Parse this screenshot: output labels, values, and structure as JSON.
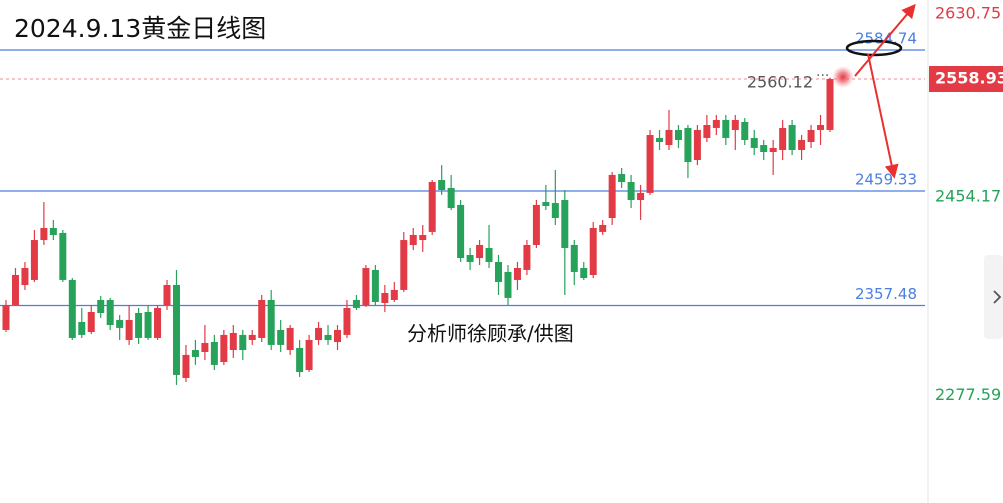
{
  "chart_data": {
    "type": "candlestick",
    "title": "2024.9.13黄金日线图",
    "annotation": "分析师徐顾承/供图",
    "up_color": "#e23b45",
    "down_color": "#26a25a",
    "level_color": "#4a7fe0",
    "ylim": [
      2181.8,
      2629.2
    ],
    "yticks": [
      2630.75,
      2454.17,
      2277.59
    ],
    "levels": [
      2584.74,
      2459.33,
      2357.48
    ],
    "open": [
      2335.7,
      2357.9,
      2375.7,
      2380.2,
      2415.7,
      2426.4,
      2422.0,
      2380.2,
      2342.8,
      2333.9,
      2362.4,
      2362.4,
      2344.6,
      2326.8,
      2350.8,
      2351.7,
      2328.6,
      2357.9,
      2375.7,
      2293.0,
      2317.9,
      2316.1,
      2325.0,
      2307.2,
      2317.9,
      2331.3,
      2326.8,
      2328.6,
      2362.4,
      2335.7,
      2317.9,
      2319.7,
      2300.1,
      2326.8,
      2331.3,
      2325.0,
      2331.3,
      2362.4,
      2357.9,
      2389.1,
      2359.7,
      2362.4,
      2371.3,
      2411.3,
      2415.7,
      2422.9,
      2469.1,
      2462.0,
      2446.9,
      2402.4,
      2399.7,
      2408.6,
      2396.2,
      2387.3,
      2380.2,
      2389.1,
      2411.3,
      2449.5,
      2448.6,
      2451.3,
      2411.3,
      2390.8,
      2384.6,
      2422.9,
      2435.3,
      2474.4,
      2467.3,
      2451.3,
      2457.6,
      2506.5,
      2500.2,
      2513.6,
      2515.4,
      2486.9,
      2506.5,
      2515.4,
      2522.5,
      2513.6,
      2520.7,
      2506.5,
      2500.2,
      2494.0,
      2495.8,
      2518.0,
      2495.8,
      2502.9,
      2513.6,
      2513.6
    ],
    "high": [
      2362.4,
      2390.8,
      2396.2,
      2424.6,
      2449.5,
      2433.5,
      2424.6,
      2381.9,
      2355.3,
      2357.9,
      2365.9,
      2364.2,
      2349.0,
      2357.9,
      2355.3,
      2357.9,
      2357.9,
      2380.2,
      2389.1,
      2322.4,
      2326.8,
      2340.1,
      2331.3,
      2335.7,
      2340.1,
      2335.7,
      2335.7,
      2366.8,
      2371.3,
      2344.6,
      2340.1,
      2326.8,
      2331.3,
      2342.8,
      2340.1,
      2340.1,
      2362.4,
      2366.8,
      2393.5,
      2393.5,
      2375.7,
      2378.4,
      2422.9,
      2426.4,
      2429.1,
      2469.1,
      2482.4,
      2473.6,
      2451.3,
      2408.6,
      2415.7,
      2429.1,
      2402.4,
      2393.5,
      2396.2,
      2415.7,
      2451.3,
      2464.7,
      2478.0,
      2460.2,
      2415.7,
      2396.2,
      2431.8,
      2433.5,
      2476.2,
      2479.8,
      2473.6,
      2464.7,
      2513.6,
      2513.6,
      2531.4,
      2518.0,
      2518.0,
      2518.0,
      2526.9,
      2526.9,
      2526.9,
      2526.9,
      2524.2,
      2513.6,
      2504.7,
      2504.7,
      2522.5,
      2522.5,
      2509.1,
      2518.0,
      2526.9,
      2560.12
    ],
    "low": [
      2333.9,
      2357.0,
      2371.3,
      2378.4,
      2411.3,
      2415.7,
      2378.4,
      2326.8,
      2328.6,
      2332.1,
      2346.4,
      2335.7,
      2326.8,
      2322.4,
      2323.2,
      2326.8,
      2326.8,
      2353.5,
      2286.8,
      2289.4,
      2304.6,
      2309.0,
      2300.1,
      2304.6,
      2310.8,
      2309.0,
      2322.4,
      2325.0,
      2317.9,
      2316.1,
      2313.5,
      2293.9,
      2298.3,
      2322.4,
      2322.4,
      2317.9,
      2328.6,
      2353.5,
      2356.2,
      2357.9,
      2351.7,
      2360.6,
      2369.5,
      2406.8,
      2405.1,
      2420.2,
      2455.8,
      2442.4,
      2396.2,
      2389.1,
      2393.5,
      2390.8,
      2366.8,
      2357.9,
      2371.3,
      2384.6,
      2408.6,
      2442.4,
      2429.1,
      2366.8,
      2375.7,
      2380.2,
      2381.9,
      2420.2,
      2429.1,
      2462.0,
      2444.2,
      2433.5,
      2455.8,
      2495.8,
      2495.8,
      2497.6,
      2470.9,
      2482.4,
      2502.9,
      2509.1,
      2500.2,
      2495.8,
      2500.2,
      2491.3,
      2486.9,
      2473.6,
      2486.9,
      2491.3,
      2486.9,
      2497.6,
      2500.2,
      2511.8
    ],
    "close": [
      2357.9,
      2384.6,
      2390.8,
      2415.7,
      2426.4,
      2420.2,
      2380.2,
      2328.6,
      2331.3,
      2351.7,
      2350.8,
      2340.1,
      2337.5,
      2344.6,
      2328.6,
      2328.6,
      2355.3,
      2375.7,
      2295.7,
      2313.5,
      2311.7,
      2324.1,
      2304.6,
      2331.3,
      2333.0,
      2317.9,
      2331.3,
      2362.4,
      2322.4,
      2322.4,
      2337.5,
      2298.3,
      2326.8,
      2337.5,
      2326.8,
      2335.7,
      2355.3,
      2355.3,
      2390.8,
      2360.6,
      2368.6,
      2371.3,
      2415.7,
      2420.2,
      2420.2,
      2467.3,
      2460.2,
      2444.2,
      2399.7,
      2396.2,
      2411.3,
      2396.2,
      2378.4,
      2364.2,
      2390.8,
      2411.3,
      2446.9,
      2446.0,
      2435.3,
      2408.6,
      2387.3,
      2381.9,
      2426.4,
      2429.1,
      2473.6,
      2467.3,
      2451.3,
      2457.6,
      2509.1,
      2502.9,
      2513.6,
      2504.7,
      2485.1,
      2513.6,
      2518.0,
      2522.5,
      2506.5,
      2522.5,
      2504.7,
      2497.6,
      2494.0,
      2497.6,
      2515.4,
      2495.8,
      2504.7,
      2513.6,
      2518.0,
      2558.93
    ]
  }
}
